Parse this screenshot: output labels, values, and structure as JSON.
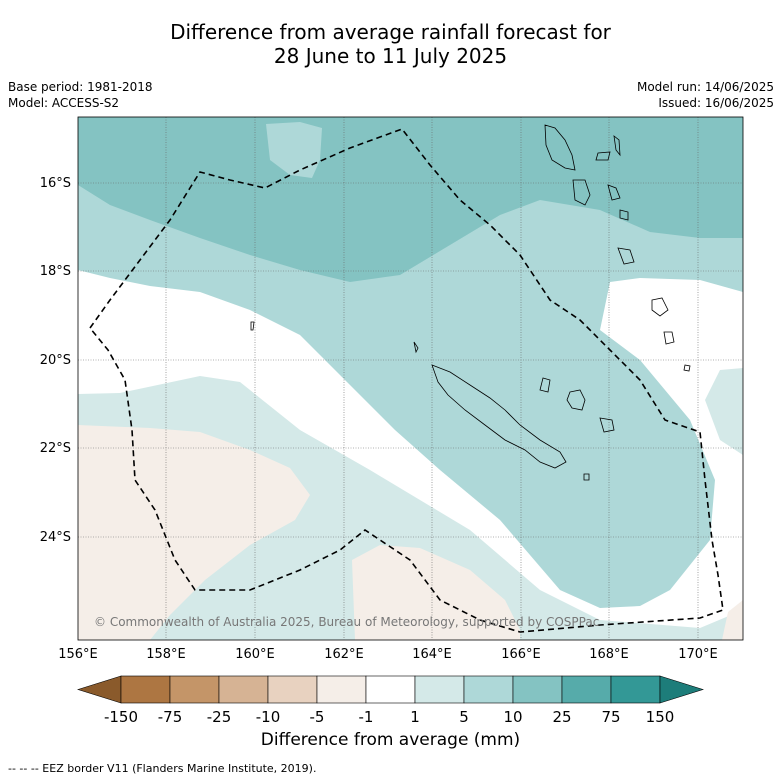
{
  "title_line1": "Difference from average rainfall forecast for",
  "title_line2": "28 June to 11 July 2025",
  "base_period": "Base period: 1981-2018",
  "model": "Model: ACCESS-S2",
  "model_run": "Model run: 14/06/2025",
  "issued": "Issued: 16/06/2025",
  "copyright": "© Commonwealth of Australia 2025, Bureau of Meteorology, supported by COSPPac",
  "lat_labels": [
    "16°S",
    "18°S",
    "20°S",
    "22°S",
    "24°S"
  ],
  "lon_labels": [
    "156°E",
    "158°E",
    "160°E",
    "162°E",
    "164°E",
    "166°E",
    "168°E",
    "170°E"
  ],
  "colorbar": {
    "ticks": [
      "-150",
      "-75",
      "-25",
      "-10",
      "-5",
      "-1",
      "1",
      "5",
      "10",
      "25",
      "75",
      "150"
    ],
    "colors": [
      "#8a5a2b",
      "#ad7642",
      "#c49568",
      "#d6b394",
      "#e8d2c0",
      "#f5eee8",
      "#ffffff",
      "#d4e9e8",
      "#aed8d8",
      "#84c3c2",
      "#56abaa",
      "#339896",
      "#1d7d7a"
    ],
    "label": "Difference from average (mm)"
  },
  "eez_note": "--  --  -- EEZ border V11 (Flanders Marine Institute, 2019)."
}
